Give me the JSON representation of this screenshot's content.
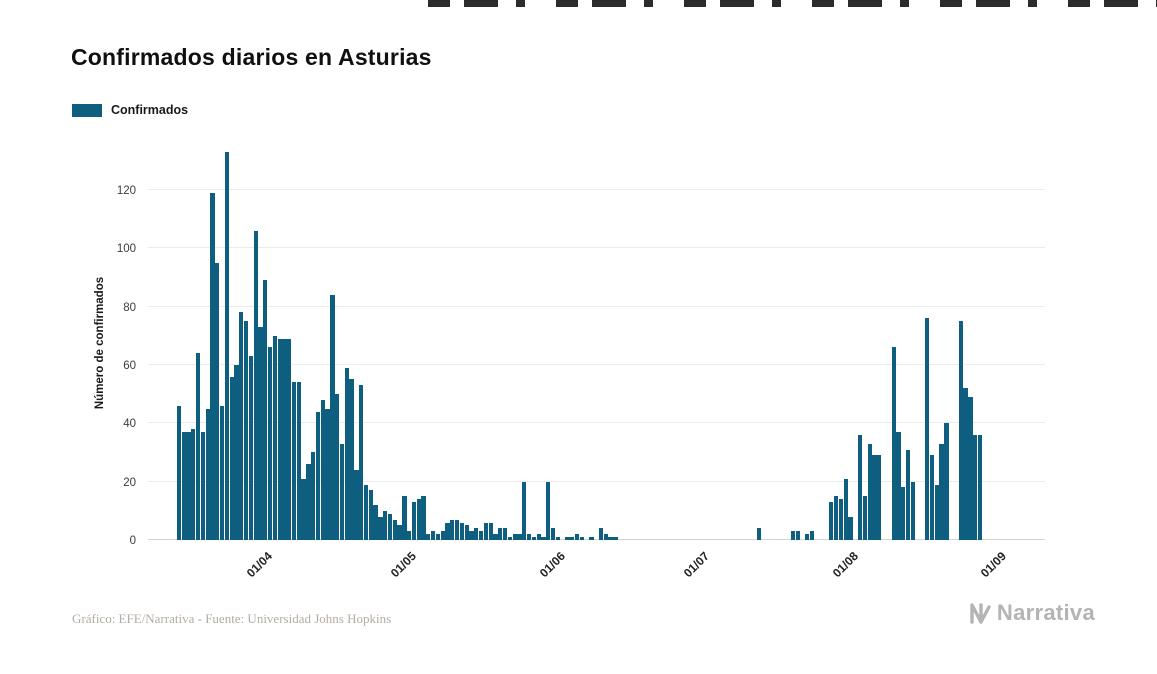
{
  "title": "Confirmados diarios en Asturias",
  "legend": {
    "label": "Confirmados"
  },
  "y_axis_label": "Número de confirmados",
  "footer": {
    "credit": "Gráfico: EFE/Narrativa - Fuente: Universidad Johns Hopkins",
    "brand": "Narrativa"
  },
  "colors": {
    "bar": "#0e5e7f",
    "grid": "#ebebeb",
    "title_text": "#101010",
    "tick_text": "#3c3c3c",
    "credit_text": "#b3aca4",
    "brand_text": "#b4b4b4"
  },
  "chart_data": {
    "type": "bar",
    "title": "Confirmados diarios en Asturias",
    "series_name": "Confirmados",
    "xlabel": "",
    "ylabel": "Número de confirmados",
    "ylim": [
      0,
      135
    ],
    "y_ticks": [
      0,
      20,
      40,
      60,
      80,
      100,
      120
    ],
    "grid": true,
    "legend_position": "top-left",
    "x_tick_labels": [
      "01/04",
      "01/05",
      "01/06",
      "01/07",
      "01/08",
      "01/09"
    ],
    "x_tick_indices": [
      24,
      54,
      85,
      115,
      146,
      177
    ],
    "x_tick_rotation": -45,
    "values": [
      0,
      0,
      0,
      0,
      0,
      0,
      46,
      37,
      37,
      38,
      64,
      37,
      45,
      119,
      95,
      46,
      133,
      56,
      60,
      78,
      75,
      63,
      106,
      73,
      89,
      66,
      70,
      69,
      69,
      69,
      54,
      54,
      21,
      26,
      30,
      44,
      48,
      45,
      84,
      50,
      33,
      59,
      55,
      24,
      53,
      19,
      17,
      12,
      8,
      10,
      9,
      7,
      5,
      15,
      3,
      13,
      14,
      15,
      2,
      3,
      2,
      3,
      6,
      7,
      7,
      6,
      5,
      3,
      4,
      3,
      6,
      6,
      2,
      4,
      4,
      1,
      2,
      2,
      20,
      2,
      1,
      2,
      1,
      20,
      4,
      1,
      0,
      1,
      1,
      2,
      1,
      0,
      1,
      0,
      4,
      2,
      1,
      1,
      0,
      0,
      0,
      0,
      0,
      0,
      0,
      0,
      0,
      0,
      0,
      0,
      0,
      0,
      0,
      0,
      0,
      0,
      0,
      0,
      0,
      0,
      0,
      0,
      0,
      0,
      0,
      0,
      0,
      4,
      0,
      0,
      0,
      0,
      0,
      0,
      3,
      3,
      0,
      2,
      3,
      0,
      0,
      0,
      13,
      15,
      14,
      21,
      8,
      0,
      36,
      15,
      33,
      29,
      29,
      0,
      0,
      66,
      37,
      18,
      31,
      20,
      0,
      0,
      76,
      29,
      19,
      33,
      40,
      0,
      0,
      75,
      52,
      49,
      36,
      36,
      0,
      0,
      0,
      0,
      0,
      0,
      0,
      0,
      0,
      0,
      0,
      0,
      0
    ]
  }
}
